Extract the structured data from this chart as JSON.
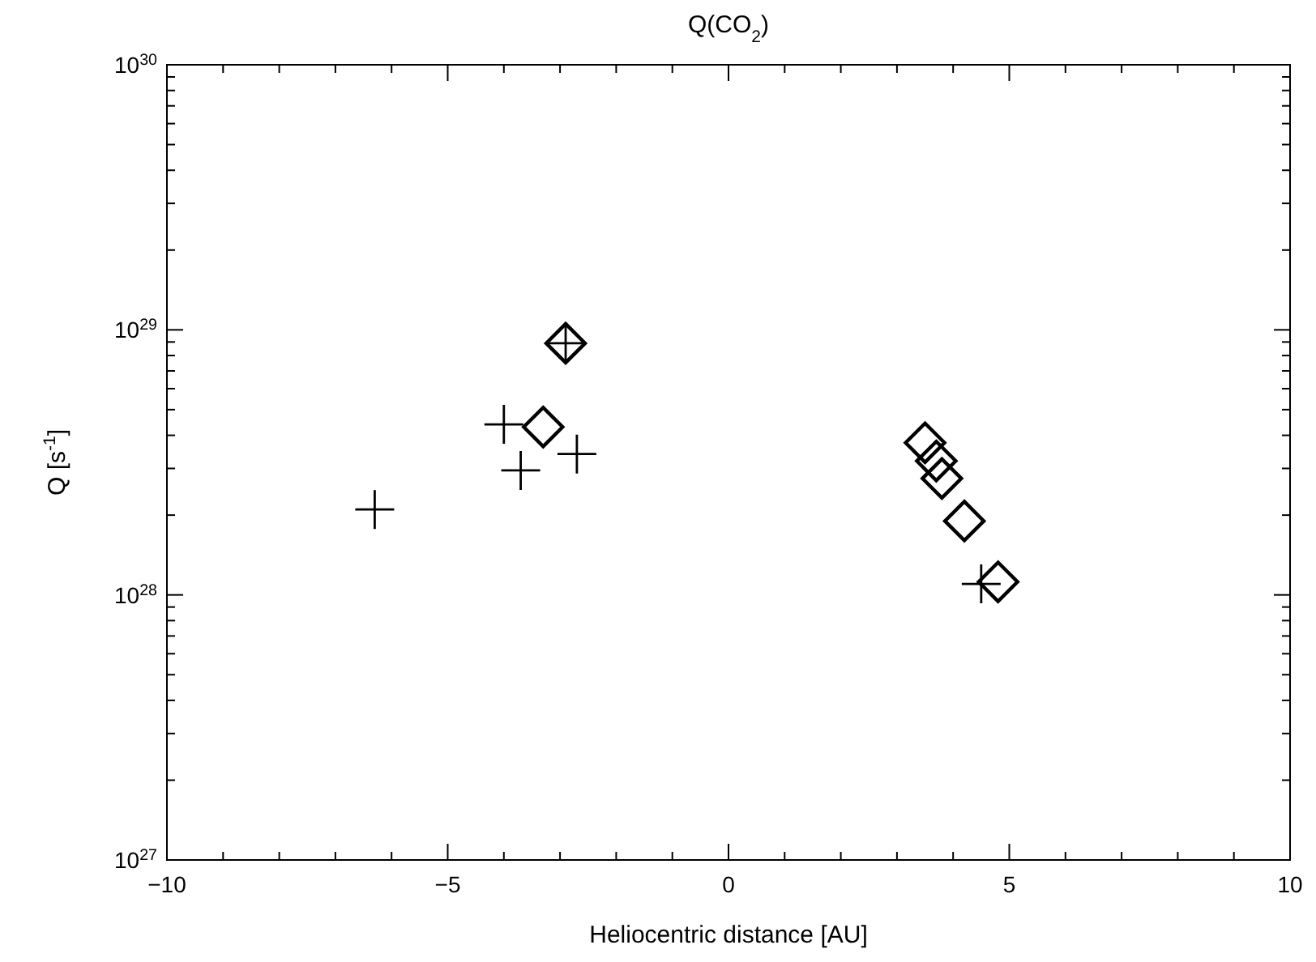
{
  "chart_data": {
    "type": "scatter",
    "title": "Q(CO$_{2}$)",
    "xlabel": "Heliocentric distance [AU]",
    "ylabel": "Q [s$^{-1}$]",
    "log": "y",
    "grid": false,
    "xlim": [
      -10,
      10
    ],
    "xticks": [
      {
        "value": -10,
        "label": "−10"
      },
      {
        "value": -5,
        "label": "−5"
      },
      0,
      5,
      10
    ],
    "ylim": [
      1e+27,
      1e+30
    ],
    "yticks": [
      {
        "value": 1e+27,
        "label": "10$^{27}$"
      },
      {
        "value": 1e+28,
        "label": "10$^{28}$"
      },
      {
        "value": 1e+29,
        "label": "10$^{29}$"
      },
      {
        "value": 1e+30,
        "label": "10$^{30}$"
      }
    ],
    "series": [
      {
        "marker": "cross",
        "color": "#000000",
        "x": [
          -6.3,
          -4.0,
          -3.7,
          -2.7,
          -2.9,
          4.5
        ],
        "values": [
          2.1e+28,
          4.4e+28,
          2.95e+28,
          3.4e+28,
          8.9e+28,
          1.1e+28
        ]
      },
      {
        "marker": "diamond",
        "color": "#000000",
        "x": [
          -2.9,
          -3.3,
          3.5,
          3.7,
          3.8,
          4.2,
          4.8
        ],
        "values": [
          8.9e+28,
          4.3e+28,
          3.75e+28,
          3.2e+28,
          2.75e+28,
          1.9e+28,
          1.12e+28
        ]
      }
    ]
  }
}
